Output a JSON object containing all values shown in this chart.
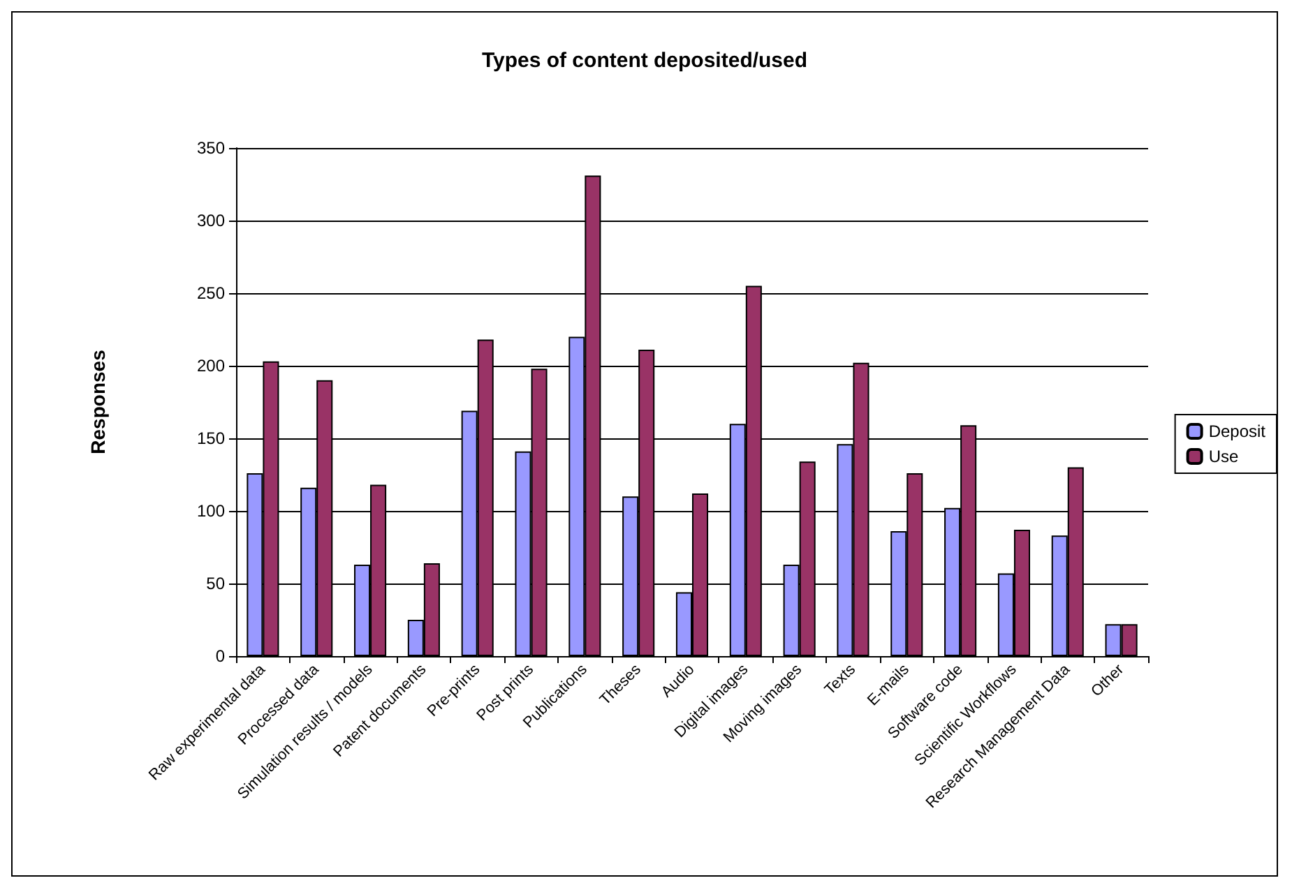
{
  "chart_data": {
    "type": "bar",
    "title": "Types of content deposited/used",
    "ylabel": "Responses",
    "categories": [
      "Raw experimental data",
      "Processed data",
      "Simulation results / models",
      "Patent documents",
      "Pre-prints",
      "Post prints",
      "Publications",
      "Theses",
      "Audio",
      "Digital images",
      "Moving images",
      "Texts",
      "E-mails",
      "Software code",
      "Scientific Workflows",
      "Research Management Data",
      "Other"
    ],
    "series": [
      {
        "name": "Deposit",
        "color": "#9999ff",
        "values": [
          126,
          116,
          63,
          25,
          169,
          141,
          220,
          110,
          44,
          160,
          63,
          146,
          86,
          102,
          57,
          83,
          22
        ]
      },
      {
        "name": "Use",
        "color": "#993366",
        "values": [
          203,
          190,
          118,
          64,
          218,
          198,
          331,
          211,
          112,
          255,
          134,
          202,
          126,
          159,
          87,
          130,
          22
        ]
      }
    ],
    "ylim": [
      0,
      350
    ],
    "yticks": [
      0,
      50,
      100,
      150,
      200,
      250,
      300,
      350
    ],
    "grid": "y",
    "legend": "right"
  }
}
